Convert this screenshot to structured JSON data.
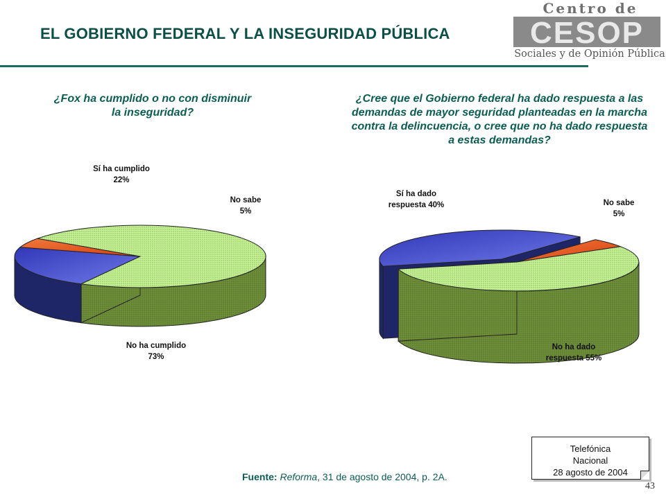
{
  "header": {
    "title": "EL GOBIERNO FEDERAL Y LA INSEGURIDAD PÚBLICA",
    "logo_top": "Centro de Estudios",
    "logo_mark": "CESOP",
    "logo_bottom": "Sociales y de Opinión Pública"
  },
  "chart_data": [
    {
      "type": "pie",
      "title": "¿Fox ha cumplido o no con disminuir la inseguridad?",
      "categories": [
        "Sí ha cumplido",
        "No sabe",
        "No ha cumplido"
      ],
      "values": [
        22,
        5,
        73
      ],
      "unit": "%",
      "labels": [
        {
          "line1": "Sí ha cumplido",
          "line2": "22%"
        },
        {
          "line1": "No sabe",
          "line2": "5%"
        },
        {
          "line1": "No ha cumplido",
          "line2": "73%"
        }
      ],
      "colors": [
        "#4148c9",
        "#e8501c",
        "#b6e385"
      ]
    },
    {
      "type": "pie",
      "title": "¿Cree que el Gobierno federal ha dado respuesta a las demandas de mayor seguridad planteadas en la marcha contra la delincuencia, o cree que no ha dado respuesta a estas demandas?",
      "categories": [
        "Sí ha dado respuesta",
        "No sabe",
        "No ha dado respuesta"
      ],
      "values": [
        40,
        5,
        55
      ],
      "unit": "%",
      "labels": [
        {
          "line1": "Sí ha dado",
          "line2": "respuesta 40%"
        },
        {
          "line1": "No sabe",
          "line2": "5%"
        },
        {
          "line1": "No ha dado",
          "line2": "respuesta 55%"
        }
      ],
      "colors": [
        "#4148c9",
        "#e8501c",
        "#b6e385"
      ]
    }
  ],
  "infobox": {
    "line1": "Telefónica",
    "line2": "Nacional",
    "line3": "28 agosto de 2004"
  },
  "source": {
    "label": "Fuente:",
    "publication": "Reforma",
    "rest": ", 31 de agosto de 2004, p. 2A."
  },
  "page_number": "43"
}
